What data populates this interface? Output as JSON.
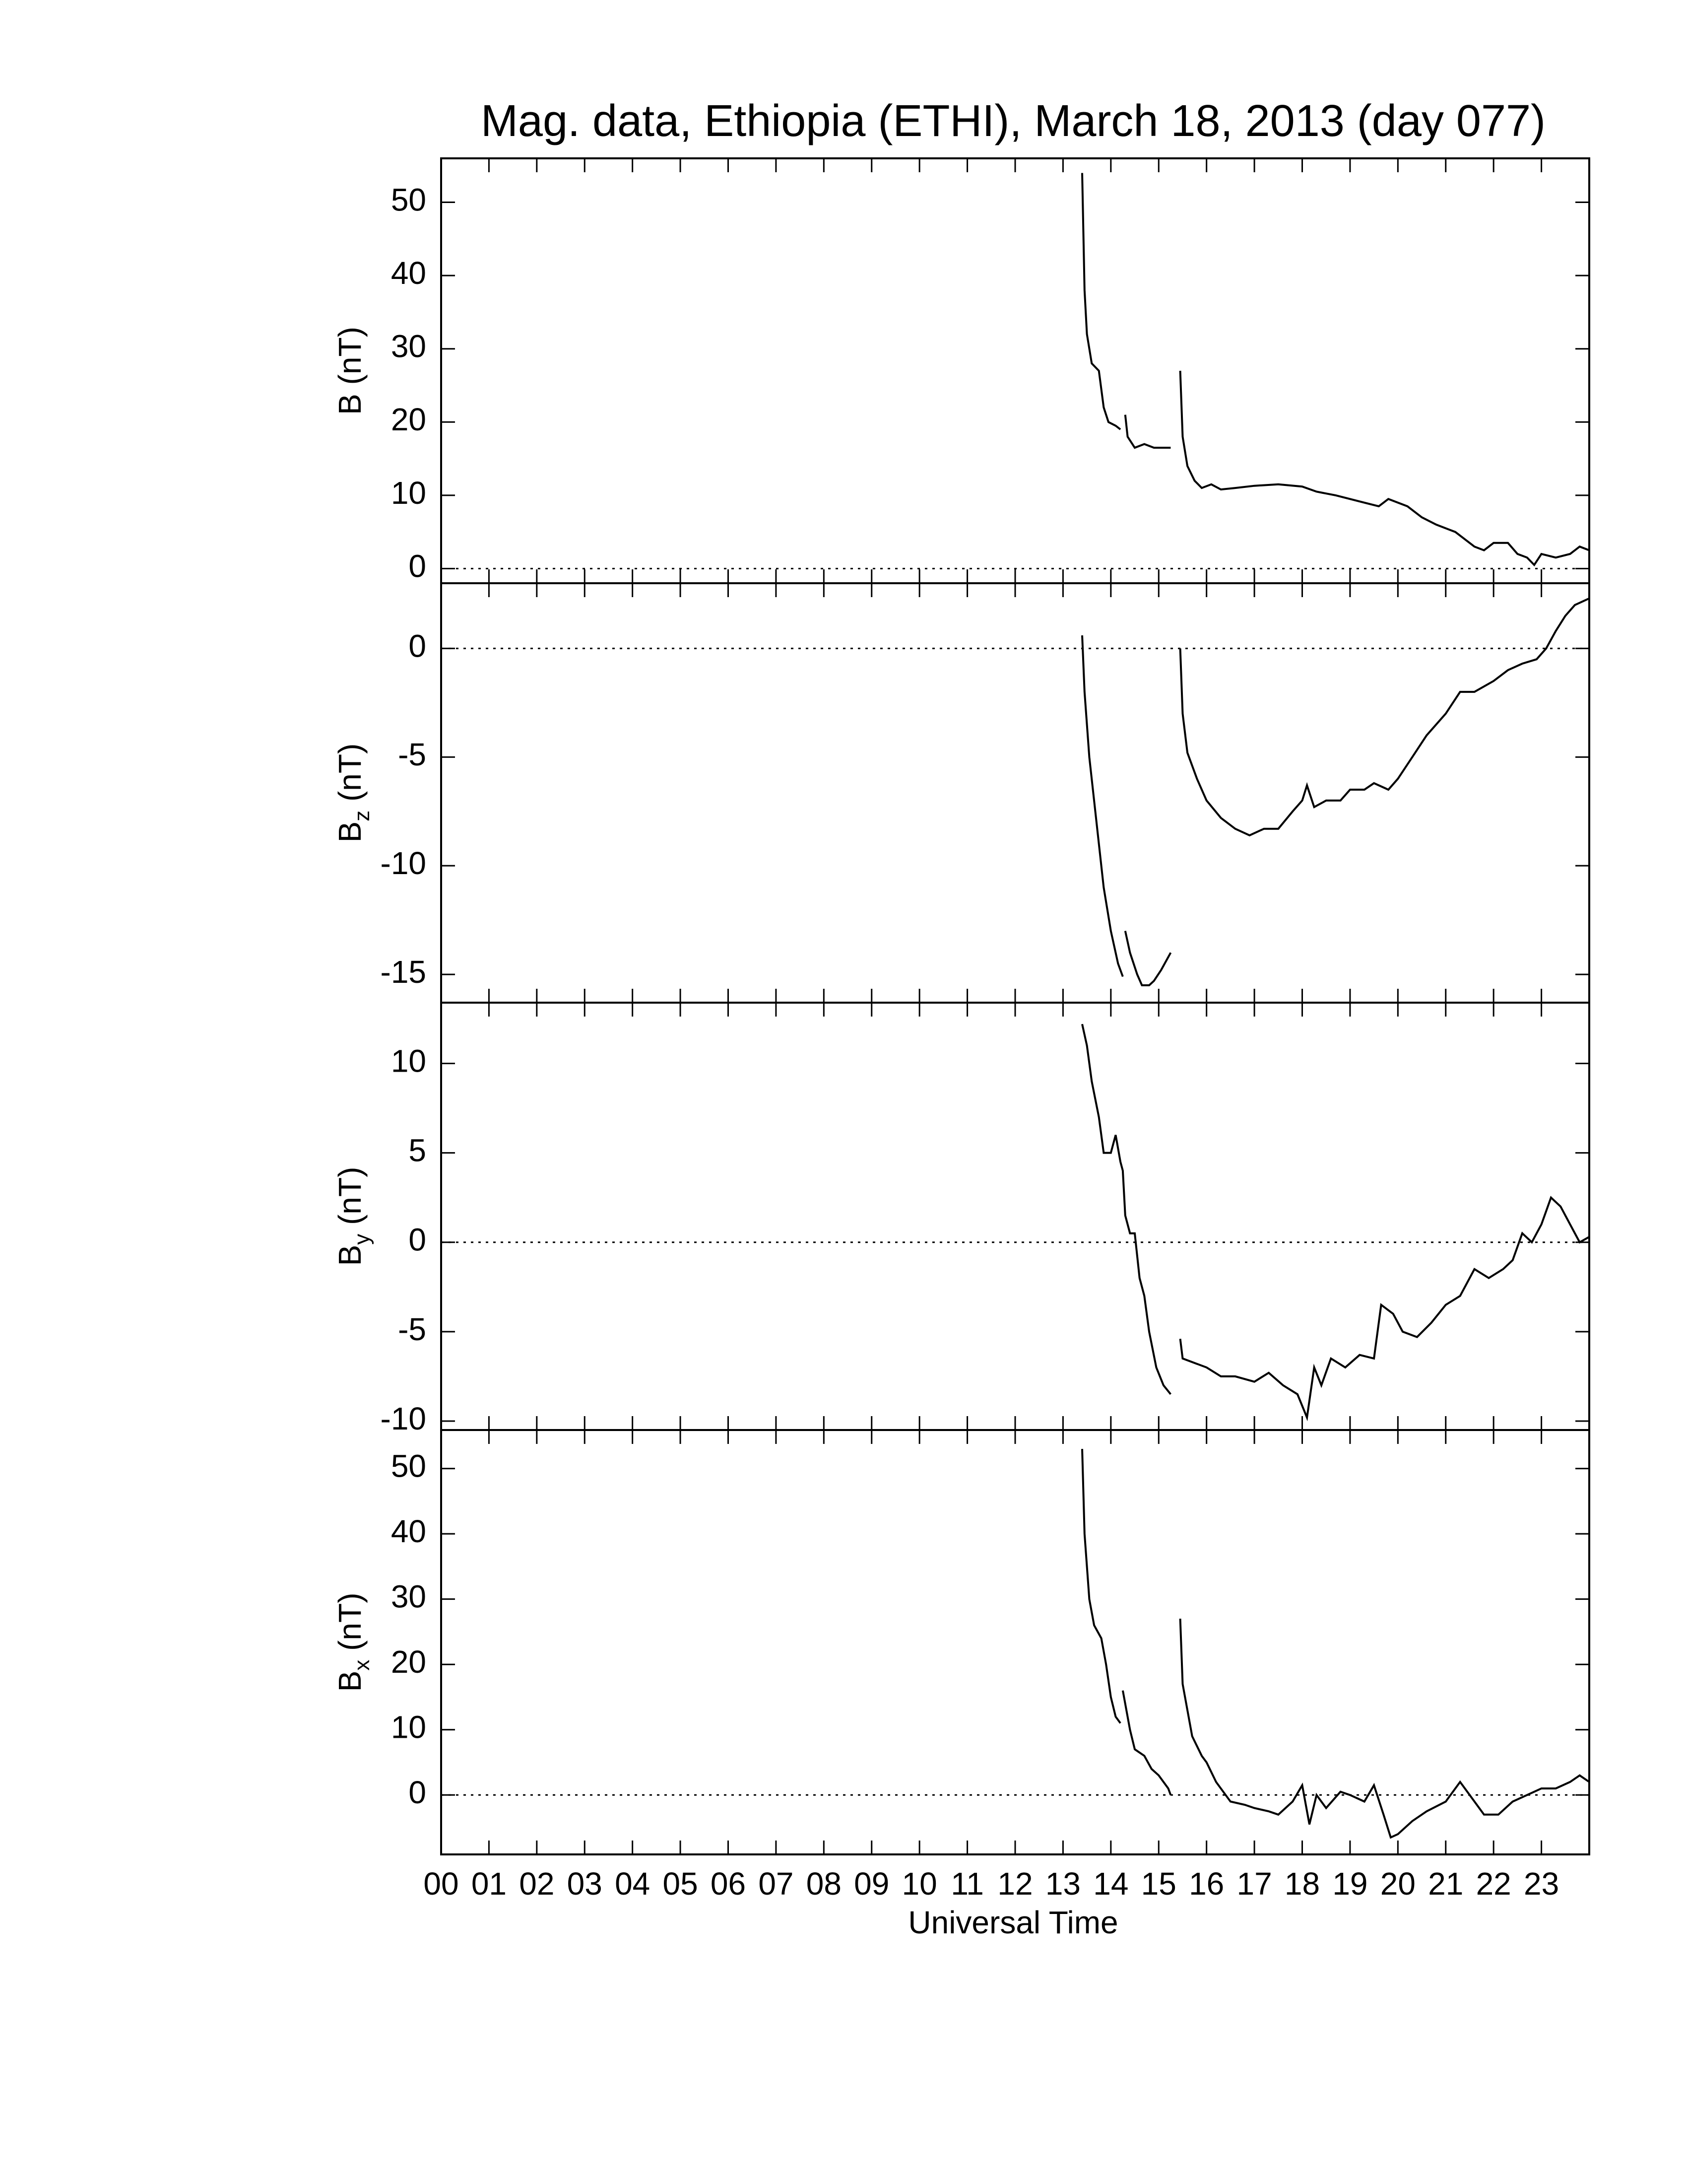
{
  "chart_data": {
    "type": "line",
    "title": "Mag. data, Ethiopia (ETHI), March 18, 2013 (day 077)",
    "xlabel": "Universal Time",
    "xlim": [
      0,
      24
    ],
    "xticks": [
      {
        "value": 0,
        "label": "00"
      },
      {
        "value": 1,
        "label": "01"
      },
      {
        "value": 2,
        "label": "02"
      },
      {
        "value": 3,
        "label": "03"
      },
      {
        "value": 4,
        "label": "04"
      },
      {
        "value": 5,
        "label": "05"
      },
      {
        "value": 6,
        "label": "06"
      },
      {
        "value": 7,
        "label": "07"
      },
      {
        "value": 8,
        "label": "08"
      },
      {
        "value": 9,
        "label": "09"
      },
      {
        "value": 10,
        "label": "10"
      },
      {
        "value": 11,
        "label": "11"
      },
      {
        "value": 12,
        "label": "12"
      },
      {
        "value": 13,
        "label": "13"
      },
      {
        "value": 14,
        "label": "14"
      },
      {
        "value": 15,
        "label": "15"
      },
      {
        "value": 16,
        "label": "16"
      },
      {
        "value": 17,
        "label": "17"
      },
      {
        "value": 18,
        "label": "18"
      },
      {
        "value": 19,
        "label": "19"
      },
      {
        "value": 20,
        "label": "20"
      },
      {
        "value": 21,
        "label": "21"
      },
      {
        "value": 22,
        "label": "22"
      },
      {
        "value": 23,
        "label": "23"
      }
    ],
    "panels": [
      {
        "ylabel": "B",
        "ylabel_unit": " (nT)",
        "ylim": [
          -2,
          56
        ],
        "yticks": [
          0,
          10,
          20,
          30,
          40,
          50
        ],
        "color": "#000000",
        "x": [
          13.4,
          13.45,
          13.5,
          13.6,
          13.75,
          13.85,
          13.95,
          14.1,
          14.2,
          14.25,
          14.3,
          14.35,
          14.5,
          14.7,
          14.9,
          15.1,
          15.25,
          15.35,
          15.45,
          15.5,
          15.6,
          15.75,
          15.9,
          16.1,
          16.3,
          16.6,
          17,
          17.5,
          18,
          18.3,
          18.7,
          19,
          19.3,
          19.6,
          19.8,
          20.2,
          20.5,
          20.8,
          21.2,
          21.6,
          21.8,
          22,
          22.3,
          22.5,
          22.7,
          22.85,
          23,
          23.3,
          23.6,
          23.8,
          24
        ],
        "values": [
          54,
          38,
          32,
          28,
          27,
          22,
          20,
          19.5,
          19,
          null,
          21,
          18,
          16.5,
          17,
          16.5,
          16.5,
          16.5,
          null,
          27,
          18,
          14,
          12,
          11,
          11.5,
          10.8,
          11,
          11.3,
          11.5,
          11.2,
          10.5,
          10,
          9.5,
          9,
          8.5,
          9.5,
          8.5,
          7,
          6,
          5,
          3,
          2.5,
          3.5,
          3.5,
          2,
          1.5,
          0.5,
          2,
          1.5,
          2,
          3,
          2.5
        ]
      },
      {
        "ylabel": "B",
        "ylabel_sub": "z",
        "ylabel_unit": " (nT)",
        "ylim": [
          -16.3,
          3
        ],
        "yticks": [
          0,
          -5,
          -10,
          -15
        ],
        "color": "#000000",
        "x": [
          13.4,
          13.45,
          13.55,
          13.7,
          13.85,
          14,
          14.15,
          14.25,
          14.28,
          14.3,
          14.4,
          14.55,
          14.65,
          14.8,
          14.9,
          15.05,
          15.25,
          15.35,
          15.45,
          15.5,
          15.6,
          15.8,
          16,
          16.3,
          16.6,
          16.9,
          17.2,
          17.5,
          17.8,
          18,
          18.1,
          18.25,
          18.5,
          18.8,
          19,
          19.3,
          19.5,
          19.8,
          20,
          20.3,
          20.6,
          21,
          21.3,
          21.6,
          22,
          22.3,
          22.6,
          22.9,
          23.1,
          23.3,
          23.5,
          23.7,
          24
        ],
        "values": [
          0.6,
          -2,
          -5,
          -8,
          -11,
          -13,
          -14.5,
          -15.1,
          null,
          -13,
          -14,
          -15,
          -15.5,
          -15.5,
          -15.3,
          -14.8,
          -14,
          null,
          0,
          -3,
          -4.8,
          -6,
          -7,
          -7.8,
          -8.3,
          -8.6,
          -8.3,
          -8.3,
          -7.5,
          -7,
          -6.3,
          -7.3,
          -7,
          -7,
          -6.5,
          -6.5,
          -6.2,
          -6.5,
          -6,
          -5,
          -4,
          -3,
          -2,
          -2,
          -1.5,
          -1,
          -0.7,
          -0.5,
          0,
          0.8,
          1.5,
          2,
          2.3
        ]
      },
      {
        "ylabel": "B",
        "ylabel_sub": "y",
        "ylabel_unit": " (nT)",
        "ylim": [
          -10.5,
          13.4
        ],
        "yticks": [
          10,
          5,
          0,
          -5,
          -10
        ],
        "color": "#000000",
        "x": [
          13.4,
          13.5,
          13.6,
          13.75,
          13.85,
          14,
          14.1,
          14.2,
          14.25,
          14.3,
          14.4,
          14.5,
          14.6,
          14.7,
          14.8,
          14.95,
          15.1,
          15.25,
          15.35,
          15.45,
          15.5,
          15.8,
          16,
          16.3,
          16.6,
          17,
          17.3,
          17.6,
          17.9,
          18.1,
          18.25,
          18.4,
          18.6,
          18.9,
          19.2,
          19.5,
          19.65,
          19.9,
          20.1,
          20.4,
          20.7,
          21,
          21.3,
          21.6,
          21.9,
          22.2,
          22.4,
          22.6,
          22.8,
          23,
          23.2,
          23.4,
          23.6,
          23.8,
          24
        ],
        "values": [
          12.2,
          11,
          9,
          7,
          5,
          5,
          6,
          4.5,
          4,
          1.5,
          0.5,
          0.5,
          -2,
          -3,
          -5,
          -7,
          -8,
          -8.5,
          null,
          -5.4,
          -6.5,
          -6.8,
          -7,
          -7.5,
          -7.5,
          -7.8,
          -7.3,
          -8,
          -8.5,
          -9.8,
          -7,
          -8,
          -6.5,
          -7,
          -6.3,
          -6.5,
          -3.5,
          -4,
          -5,
          -5.3,
          -4.5,
          -3.5,
          -3,
          -1.5,
          -2,
          -1.5,
          -1,
          0.5,
          0,
          1,
          2.5,
          2,
          1,
          0,
          0.3
        ]
      },
      {
        "ylabel": "B",
        "ylabel_sub": "x",
        "ylabel_unit": " (nT)",
        "ylim": [
          -9.1,
          55.9
        ],
        "yticks": [
          0,
          10,
          20,
          30,
          40,
          50
        ],
        "color": "#000000",
        "x": [
          13.4,
          13.45,
          13.55,
          13.65,
          13.8,
          13.9,
          14,
          14.1,
          14.2,
          14.22,
          14.25,
          14.4,
          14.5,
          14.7,
          14.85,
          15,
          15.2,
          15.25,
          15.35,
          15.45,
          15.5,
          15.7,
          15.9,
          16,
          16.2,
          16.5,
          16.8,
          17,
          17.3,
          17.5,
          17.8,
          18,
          18.15,
          18.3,
          18.5,
          18.8,
          19,
          19.3,
          19.5,
          19.7,
          19.85,
          20,
          20.3,
          20.6,
          21,
          21.3,
          21.5,
          21.8,
          22.1,
          22.4,
          22.7,
          23,
          23.3,
          23.6,
          23.8,
          24
        ],
        "values": [
          53,
          40,
          30,
          26,
          24,
          20,
          15,
          12,
          11,
          null,
          16,
          10,
          7,
          6,
          4,
          3,
          1,
          0,
          null,
          27,
          17,
          9,
          6,
          5,
          2,
          -1,
          -1.5,
          -2,
          -2.5,
          -3,
          -1,
          1.5,
          -4.5,
          0,
          -2,
          0.5,
          0,
          -1,
          1.5,
          -3,
          -6.5,
          -6,
          -4,
          -2.5,
          -1,
          2,
          0,
          -3,
          -3,
          -1,
          0,
          1,
          1,
          2,
          3,
          2
        ]
      }
    ]
  }
}
